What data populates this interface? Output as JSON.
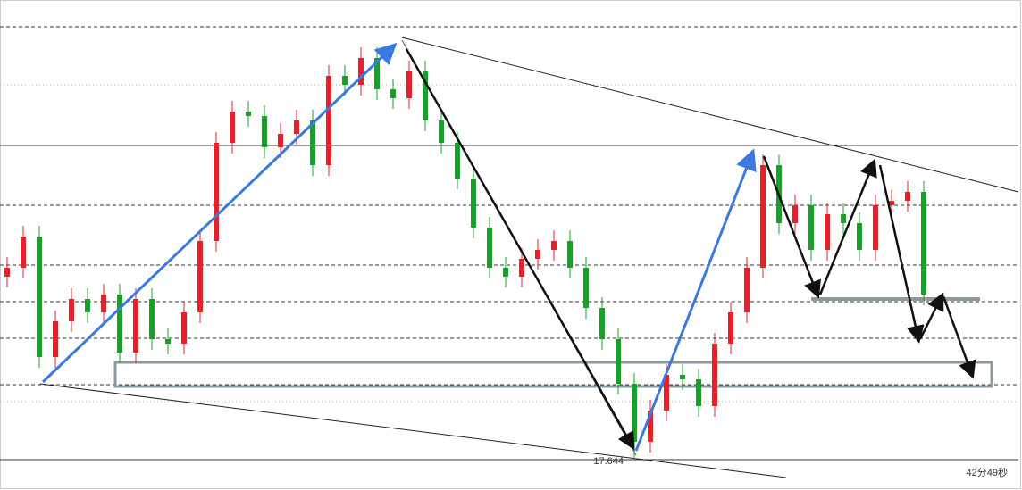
{
  "chart_data": {
    "type": "candlestick",
    "open": [
      17.849,
      17.859,
      17.894,
      17.759,
      17.799,
      17.824,
      17.809,
      17.829,
      17.764,
      17.824,
      17.779,
      17.774,
      17.809,
      17.889,
      17.999,
      18.034,
      18.029,
      17.994,
      18.009,
      18.024,
      17.974,
      18.074,
      18.064,
      18.094,
      18.059,
      18.049,
      18.079,
      18.024,
      17.999,
      17.959,
      17.904,
      17.859,
      17.849,
      17.869,
      17.879,
      17.889,
      17.859,
      17.814,
      17.779,
      17.729,
      17.664,
      17.699,
      17.739,
      17.734,
      17.704,
      17.774,
      17.809,
      17.859,
      17.974,
      17.909,
      17.929,
      17.879,
      17.919,
      17.909,
      17.879,
      17.929,
      17.934,
      17.944
    ],
    "high": [
      17.871,
      17.906,
      17.906,
      17.811,
      17.836,
      17.836,
      17.841,
      17.841,
      17.836,
      17.836,
      17.791,
      17.821,
      17.901,
      18.011,
      18.046,
      18.046,
      18.041,
      18.021,
      18.036,
      18.036,
      18.086,
      18.086,
      18.106,
      18.106,
      18.071,
      18.091,
      18.091,
      18.036,
      18.011,
      17.971,
      17.916,
      17.871,
      17.881,
      17.891,
      17.901,
      17.901,
      17.871,
      17.826,
      17.791,
      17.741,
      17.711,
      17.751,
      17.751,
      17.746,
      17.786,
      17.821,
      17.871,
      17.986,
      17.986,
      17.941,
      17.941,
      17.931,
      17.931,
      17.921,
      17.941,
      17.946,
      17.956,
      17.956
    ],
    "low": [
      17.837,
      17.847,
      17.747,
      17.747,
      17.787,
      17.797,
      17.797,
      17.752,
      17.752,
      17.767,
      17.762,
      17.762,
      17.797,
      17.877,
      17.987,
      18.017,
      17.982,
      17.982,
      17.997,
      17.962,
      17.962,
      18.052,
      18.052,
      18.047,
      18.037,
      18.037,
      18.012,
      17.987,
      17.947,
      17.892,
      17.847,
      17.837,
      17.837,
      17.857,
      17.867,
      17.847,
      17.802,
      17.767,
      17.717,
      17.644,
      17.652,
      17.687,
      17.722,
      17.692,
      17.692,
      17.762,
      17.797,
      17.847,
      17.897,
      17.897,
      17.867,
      17.867,
      17.897,
      17.867,
      17.867,
      17.917,
      17.922,
      17.817
    ],
    "close": [
      17.859,
      17.894,
      17.759,
      17.799,
      17.824,
      17.809,
      17.829,
      17.764,
      17.824,
      17.779,
      17.774,
      17.809,
      17.889,
      17.999,
      18.034,
      18.029,
      17.994,
      18.009,
      18.024,
      17.974,
      18.074,
      18.064,
      18.094,
      18.059,
      18.049,
      18.079,
      18.024,
      17.999,
      17.959,
      17.904,
      17.859,
      17.849,
      17.869,
      17.879,
      17.889,
      17.859,
      17.814,
      17.779,
      17.729,
      17.664,
      17.699,
      17.739,
      17.734,
      17.704,
      17.774,
      17.809,
      17.859,
      17.974,
      17.909,
      17.929,
      17.879,
      17.919,
      17.909,
      17.879,
      17.929,
      17.934,
      17.944,
      17.829
    ],
    "up_color": "#e8202a",
    "down_color": "#18a02a",
    "ylim": [
      17.61,
      18.159
    ],
    "countdown": "42分49秒"
  }
}
